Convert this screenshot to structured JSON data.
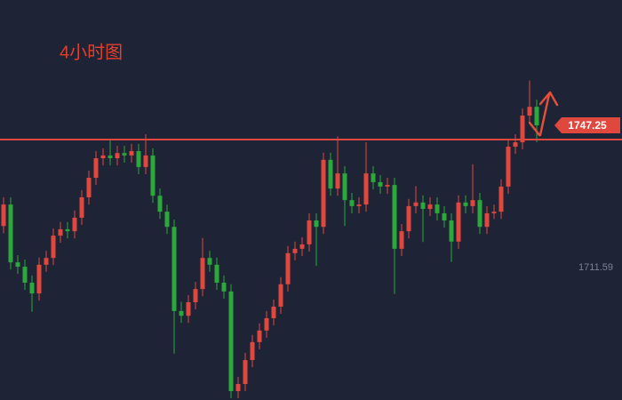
{
  "chart_data": {
    "type": "candlestick",
    "title": "4小时图",
    "up_color": "#e0483d",
    "down_color": "#2aa83a",
    "ylim": [
      1678.38,
      1778.68
    ],
    "yticks": [
      1711.59
    ],
    "resistance": 1743.68,
    "resistance_color": "#e0483d",
    "ohlc": [
      [
        1722.0,
        1729.2,
        1720.2,
        1727.4
      ],
      [
        1727.4,
        1729.2,
        1711.1,
        1712.9
      ],
      [
        1712.9,
        1714.7,
        1710.0,
        1711.8
      ],
      [
        1711.8,
        1713.6,
        1706.0,
        1707.8
      ],
      [
        1707.8,
        1709.6,
        1700.5,
        1705.1
      ],
      [
        1705.1,
        1714.1,
        1703.3,
        1712.3
      ],
      [
        1712.3,
        1715.8,
        1710.5,
        1714.0
      ],
      [
        1714.0,
        1721.4,
        1712.2,
        1719.6
      ],
      [
        1719.6,
        1723.0,
        1717.8,
        1721.2
      ],
      [
        1721.2,
        1723.0,
        1718.9,
        1720.7
      ],
      [
        1720.7,
        1725.9,
        1718.9,
        1724.1
      ],
      [
        1724.1,
        1731.0,
        1722.3,
        1729.2
      ],
      [
        1729.2,
        1735.9,
        1727.4,
        1734.1
      ],
      [
        1734.1,
        1740.8,
        1732.3,
        1739.0
      ],
      [
        1739.0,
        1741.5,
        1737.2,
        1739.7
      ],
      [
        1739.7,
        1743.9,
        1737.2,
        1739.0
      ],
      [
        1739.0,
        1742.1,
        1737.2,
        1740.3
      ],
      [
        1740.3,
        1742.1,
        1737.9,
        1739.7
      ],
      [
        1739.7,
        1742.6,
        1737.9,
        1740.8
      ],
      [
        1740.8,
        1742.6,
        1735.0,
        1736.8
      ],
      [
        1736.8,
        1745.0,
        1735.0,
        1739.7
      ],
      [
        1739.7,
        1741.5,
        1727.8,
        1729.6
      ],
      [
        1729.6,
        1731.4,
        1723.8,
        1725.6
      ],
      [
        1725.6,
        1727.4,
        1720.0,
        1721.8
      ],
      [
        1721.8,
        1723.6,
        1690.0,
        1700.7
      ],
      [
        1700.7,
        1703.0,
        1697.7,
        1699.5
      ],
      [
        1699.5,
        1704.7,
        1697.7,
        1702.9
      ],
      [
        1702.9,
        1708.0,
        1701.1,
        1706.2
      ],
      [
        1706.2,
        1719.0,
        1704.4,
        1714.0
      ],
      [
        1714.0,
        1715.8,
        1710.5,
        1712.3
      ],
      [
        1712.3,
        1714.1,
        1706.0,
        1707.8
      ],
      [
        1707.8,
        1709.6,
        1703.8,
        1705.6
      ],
      [
        1705.6,
        1707.4,
        1678.8,
        1680.6
      ],
      [
        1680.6,
        1684.2,
        1678.8,
        1682.4
      ],
      [
        1682.4,
        1690.2,
        1680.6,
        1688.4
      ],
      [
        1688.4,
        1694.7,
        1686.6,
        1692.9
      ],
      [
        1692.9,
        1697.6,
        1691.1,
        1695.8
      ],
      [
        1695.8,
        1700.7,
        1694.0,
        1698.9
      ],
      [
        1698.9,
        1703.6,
        1697.1,
        1701.8
      ],
      [
        1701.8,
        1709.2,
        1700.0,
        1707.4
      ],
      [
        1707.4,
        1717.0,
        1705.6,
        1715.2
      ],
      [
        1715.2,
        1718.1,
        1713.4,
        1716.3
      ],
      [
        1716.3,
        1719.2,
        1714.5,
        1717.4
      ],
      [
        1717.4,
        1725.2,
        1715.6,
        1723.4
      ],
      [
        1723.4,
        1725.2,
        1712.0,
        1721.8
      ],
      [
        1721.8,
        1740.4,
        1720.0,
        1738.6
      ],
      [
        1738.6,
        1740.4,
        1729.6,
        1731.4
      ],
      [
        1731.4,
        1744.5,
        1729.6,
        1735.2
      ],
      [
        1735.2,
        1737.0,
        1722.0,
        1728.5
      ],
      [
        1728.5,
        1730.3,
        1725.2,
        1727.0
      ],
      [
        1727.0,
        1729.2,
        1725.2,
        1727.4
      ],
      [
        1727.4,
        1743.0,
        1725.6,
        1735.2
      ],
      [
        1735.2,
        1737.0,
        1731.2,
        1733.0
      ],
      [
        1733.0,
        1734.8,
        1730.1,
        1731.9
      ],
      [
        1731.9,
        1734.1,
        1730.1,
        1732.3
      ],
      [
        1732.3,
        1734.1,
        1705.0,
        1716.3
      ],
      [
        1716.3,
        1722.5,
        1714.5,
        1720.7
      ],
      [
        1720.7,
        1728.8,
        1718.9,
        1727.0
      ],
      [
        1727.0,
        1732.0,
        1725.2,
        1727.9
      ],
      [
        1727.9,
        1729.7,
        1718.0,
        1726.3
      ],
      [
        1726.3,
        1729.2,
        1724.5,
        1727.4
      ],
      [
        1727.4,
        1729.2,
        1723.4,
        1725.2
      ],
      [
        1725.2,
        1727.0,
        1721.6,
        1723.4
      ],
      [
        1723.4,
        1725.2,
        1713.0,
        1718.1
      ],
      [
        1718.1,
        1729.7,
        1716.3,
        1727.9
      ],
      [
        1727.9,
        1729.7,
        1725.2,
        1727.0
      ],
      [
        1727.0,
        1737.5,
        1725.2,
        1728.5
      ],
      [
        1728.5,
        1730.3,
        1720.0,
        1721.8
      ],
      [
        1721.8,
        1727.0,
        1720.0,
        1725.2
      ],
      [
        1725.2,
        1727.4,
        1723.8,
        1725.6
      ],
      [
        1725.6,
        1733.7,
        1723.8,
        1731.9
      ],
      [
        1731.9,
        1743.7,
        1730.1,
        1741.9
      ],
      [
        1741.9,
        1745.0,
        1740.1,
        1743.0
      ],
      [
        1743.0,
        1751.5,
        1741.2,
        1749.7
      ],
      [
        1749.7,
        1758.5,
        1747.9,
        1751.9
      ],
      [
        1751.9,
        1753.7,
        1743.0,
        1747.25
      ]
    ]
  }
}
